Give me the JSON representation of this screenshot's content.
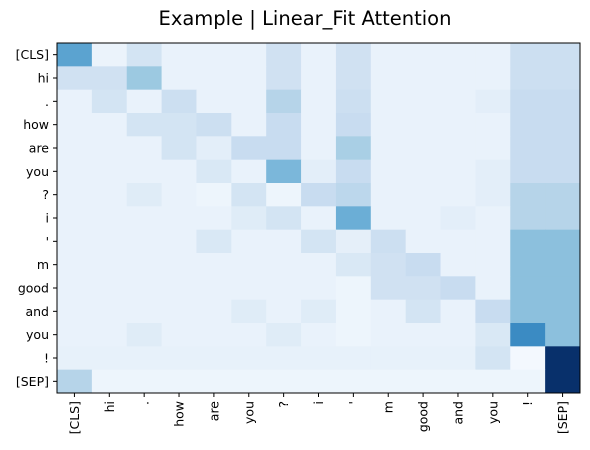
{
  "chart_data": {
    "type": "heatmap",
    "title": "Example | Linear_Fit Attention",
    "xlabel": "",
    "ylabel": "",
    "x_tokens": [
      "[CLS]",
      "hi",
      ".",
      "how",
      "are",
      "you",
      "?",
      "i",
      "'",
      "m",
      "good",
      "and",
      "you",
      "!",
      "[SEP]"
    ],
    "y_tokens": [
      "[CLS]",
      "hi",
      ".",
      "how",
      "are",
      "you",
      "?",
      "i",
      "'",
      "m",
      "good",
      "and",
      "you",
      "!",
      "[SEP]"
    ],
    "colormap": "Blues",
    "vmin": 0,
    "vmax": 1,
    "grid": false,
    "values": [
      [
        0.55,
        0.06,
        0.18,
        0.07,
        0.07,
        0.07,
        0.2,
        0.07,
        0.2,
        0.07,
        0.07,
        0.07,
        0.07,
        0.22,
        0.22
      ],
      [
        0.2,
        0.2,
        0.38,
        0.07,
        0.07,
        0.07,
        0.2,
        0.07,
        0.2,
        0.07,
        0.07,
        0.07,
        0.07,
        0.22,
        0.22
      ],
      [
        0.07,
        0.18,
        0.07,
        0.22,
        0.07,
        0.07,
        0.3,
        0.07,
        0.22,
        0.07,
        0.07,
        0.07,
        0.1,
        0.24,
        0.24
      ],
      [
        0.07,
        0.07,
        0.18,
        0.18,
        0.22,
        0.07,
        0.24,
        0.07,
        0.24,
        0.07,
        0.07,
        0.07,
        0.07,
        0.24,
        0.24
      ],
      [
        0.07,
        0.07,
        0.07,
        0.18,
        0.1,
        0.24,
        0.24,
        0.07,
        0.34,
        0.07,
        0.07,
        0.07,
        0.07,
        0.24,
        0.24
      ],
      [
        0.07,
        0.07,
        0.07,
        0.07,
        0.15,
        0.07,
        0.46,
        0.1,
        0.24,
        0.07,
        0.07,
        0.07,
        0.1,
        0.24,
        0.24
      ],
      [
        0.07,
        0.07,
        0.12,
        0.07,
        0.05,
        0.18,
        0.05,
        0.24,
        0.28,
        0.07,
        0.07,
        0.07,
        0.1,
        0.3,
        0.3
      ],
      [
        0.07,
        0.07,
        0.07,
        0.07,
        0.07,
        0.12,
        0.18,
        0.07,
        0.5,
        0.07,
        0.07,
        0.1,
        0.07,
        0.3,
        0.3
      ],
      [
        0.07,
        0.07,
        0.07,
        0.07,
        0.15,
        0.07,
        0.07,
        0.18,
        0.09,
        0.22,
        0.07,
        0.07,
        0.07,
        0.42,
        0.42
      ],
      [
        0.07,
        0.07,
        0.07,
        0.07,
        0.07,
        0.07,
        0.07,
        0.07,
        0.15,
        0.2,
        0.24,
        0.07,
        0.07,
        0.42,
        0.42
      ],
      [
        0.07,
        0.07,
        0.07,
        0.07,
        0.07,
        0.07,
        0.07,
        0.07,
        0.05,
        0.2,
        0.2,
        0.24,
        0.07,
        0.42,
        0.42
      ],
      [
        0.07,
        0.07,
        0.07,
        0.07,
        0.07,
        0.12,
        0.07,
        0.12,
        0.05,
        0.07,
        0.18,
        0.07,
        0.24,
        0.42,
        0.42
      ],
      [
        0.07,
        0.07,
        0.12,
        0.07,
        0.07,
        0.07,
        0.12,
        0.07,
        0.05,
        0.07,
        0.07,
        0.07,
        0.15,
        0.65,
        0.42
      ],
      [
        0.08,
        0.08,
        0.08,
        0.08,
        0.08,
        0.08,
        0.08,
        0.08,
        0.08,
        0.08,
        0.08,
        0.08,
        0.18,
        0.02,
        1.0
      ],
      [
        0.3,
        0.05,
        0.05,
        0.05,
        0.05,
        0.05,
        0.05,
        0.05,
        0.05,
        0.05,
        0.05,
        0.05,
        0.05,
        0.05,
        1.0
      ]
    ]
  }
}
